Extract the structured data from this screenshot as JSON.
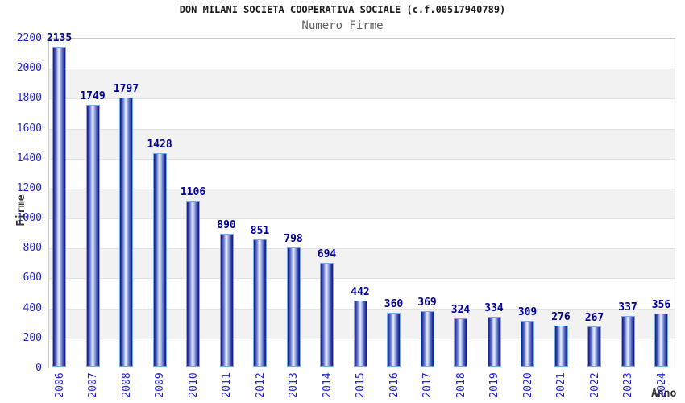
{
  "chart_data": {
    "type": "bar",
    "title": "DON MILANI SOCIETA COOPERATIVA SOCIALE (c.f.00517940789)",
    "subtitle": "Numero Firme",
    "xlabel": "Anno",
    "ylabel": "Firme",
    "categories": [
      "2006",
      "2007",
      "2008",
      "2009",
      "2010",
      "2011",
      "2012",
      "2013",
      "2014",
      "2015",
      "2016",
      "2017",
      "2018",
      "2019",
      "2020",
      "2021",
      "2022",
      "2023",
      "2024"
    ],
    "values": [
      2135,
      1749,
      1797,
      1428,
      1106,
      890,
      851,
      798,
      694,
      442,
      360,
      369,
      324,
      334,
      309,
      276,
      267,
      337,
      356
    ],
    "ylim": [
      0,
      2200
    ],
    "ytick_step": 200,
    "yticks": [
      0,
      200,
      400,
      600,
      800,
      1000,
      1200,
      1400,
      1600,
      1800,
      2000,
      2200
    ],
    "grid": true,
    "legend": "none",
    "bar_value_labels": true,
    "x_tick_rotation": -90
  },
  "colors": {
    "axis_text": "#2323cd",
    "value_label": "#000099",
    "title_text": "#1a1a1a",
    "subtitle_text": "#5f5f5f",
    "axis_title_text": "#333333",
    "plot_border": "#c9c9c9",
    "gridline": "#e2e2e2",
    "band_gray": "#f2f2f2",
    "band_white": "#ffffff",
    "bar_border": "#79aae8",
    "bar_gradient": [
      "#141a7c 0%",
      "#2e3a9e 10%",
      "#6d7fd0 26%",
      "#c9d2f5 40%",
      "#e9edfc 48%",
      "#a9b7ed 60%",
      "#5165bf 78%",
      "#232b95 92%",
      "#141a7c 100%"
    ]
  }
}
